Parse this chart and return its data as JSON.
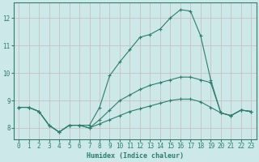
{
  "xlabel": "Humidex (Indice chaleur)",
  "background_color": "#cce8e8",
  "grid_color": "#c8c0c0",
  "line_color": "#2e7d6e",
  "xlim": [
    -0.5,
    23.5
  ],
  "ylim": [
    7.6,
    12.55
  ],
  "yticks": [
    8,
    9,
    10,
    11,
    12
  ],
  "xticks": [
    0,
    1,
    2,
    3,
    4,
    5,
    6,
    7,
    8,
    9,
    10,
    11,
    12,
    13,
    14,
    15,
    16,
    17,
    18,
    19,
    20,
    21,
    22,
    23
  ],
  "series": [
    {
      "x": [
        0,
        1,
        2,
        3,
        4,
        5,
        6,
        7,
        8,
        9,
        10,
        11,
        12,
        13,
        14,
        15,
        16,
        17,
        18,
        19,
        20,
        21,
        22,
        23
      ],
      "y": [
        8.75,
        8.75,
        8.6,
        8.1,
        7.85,
        8.1,
        8.1,
        8.1,
        8.75,
        9.9,
        10.4,
        10.85,
        11.3,
        11.4,
        11.6,
        12.0,
        12.3,
        12.25,
        11.35,
        9.75,
        8.55,
        8.45,
        8.65,
        8.6
      ]
    },
    {
      "x": [
        0,
        1,
        2,
        3,
        4,
        5,
        6,
        7,
        8,
        9,
        10,
        11,
        12,
        13,
        14,
        15,
        16,
        17,
        18,
        19,
        20,
        21,
        22,
        23
      ],
      "y": [
        8.75,
        8.75,
        8.6,
        8.1,
        7.85,
        8.1,
        8.1,
        8.0,
        8.3,
        8.65,
        9.0,
        9.2,
        9.4,
        9.55,
        9.65,
        9.75,
        9.85,
        9.85,
        9.75,
        9.65,
        8.55,
        8.45,
        8.65,
        8.6
      ]
    },
    {
      "x": [
        0,
        1,
        2,
        3,
        4,
        5,
        6,
        7,
        8,
        9,
        10,
        11,
        12,
        13,
        14,
        15,
        16,
        17,
        18,
        19,
        20,
        21,
        22,
        23
      ],
      "y": [
        8.75,
        8.75,
        8.6,
        8.1,
        7.85,
        8.1,
        8.1,
        8.0,
        8.15,
        8.3,
        8.45,
        8.6,
        8.7,
        8.8,
        8.9,
        9.0,
        9.05,
        9.05,
        8.95,
        8.75,
        8.55,
        8.45,
        8.65,
        8.6
      ]
    }
  ]
}
